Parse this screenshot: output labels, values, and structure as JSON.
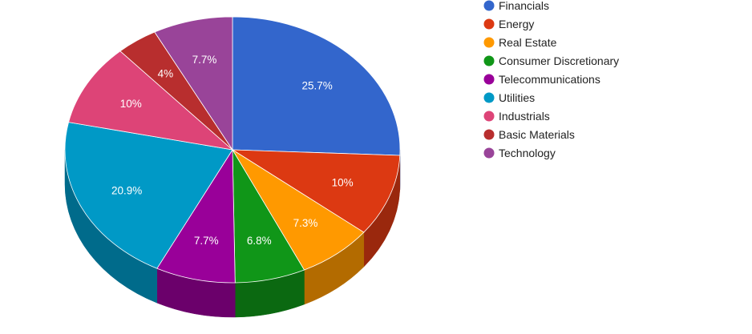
{
  "chart_data": {
    "type": "pie",
    "style": "3d",
    "legend_position": "right",
    "start_angle_deg": 0,
    "direction": "clockwise",
    "slices": [
      {
        "name": "Financials",
        "value": 25.7,
        "label": "25.7%",
        "color": "#3366cc",
        "side_color": "#24478f"
      },
      {
        "name": "Energy",
        "value": 10,
        "label": "10%",
        "color": "#dc3912",
        "side_color": "#9a280d"
      },
      {
        "name": "Real Estate",
        "value": 7.3,
        "label": "7.3%",
        "color": "#ff9900",
        "side_color": "#b36b00"
      },
      {
        "name": "Consumer Discretionary",
        "value": 6.8,
        "label": "6.8%",
        "color": "#109618",
        "side_color": "#0b6911"
      },
      {
        "name": "Telecommunications",
        "value": 7.7,
        "label": "7.7%",
        "color": "#990099",
        "side_color": "#6b006b"
      },
      {
        "name": "Utilities",
        "value": 20.9,
        "label": "20.9%",
        "color": "#0099c6",
        "side_color": "#006b8b"
      },
      {
        "name": "Industrials",
        "value": 10,
        "label": "10%",
        "color": "#dd4477",
        "side_color": "#9b3053"
      },
      {
        "name": "Basic Materials",
        "value": 4,
        "label": "4%",
        "color": "#b82e2e",
        "side_color": "#812020"
      },
      {
        "name": "Technology",
        "value": 7.7,
        "label": "7.7%",
        "color": "#994499",
        "side_color": "#6b306b"
      }
    ]
  }
}
